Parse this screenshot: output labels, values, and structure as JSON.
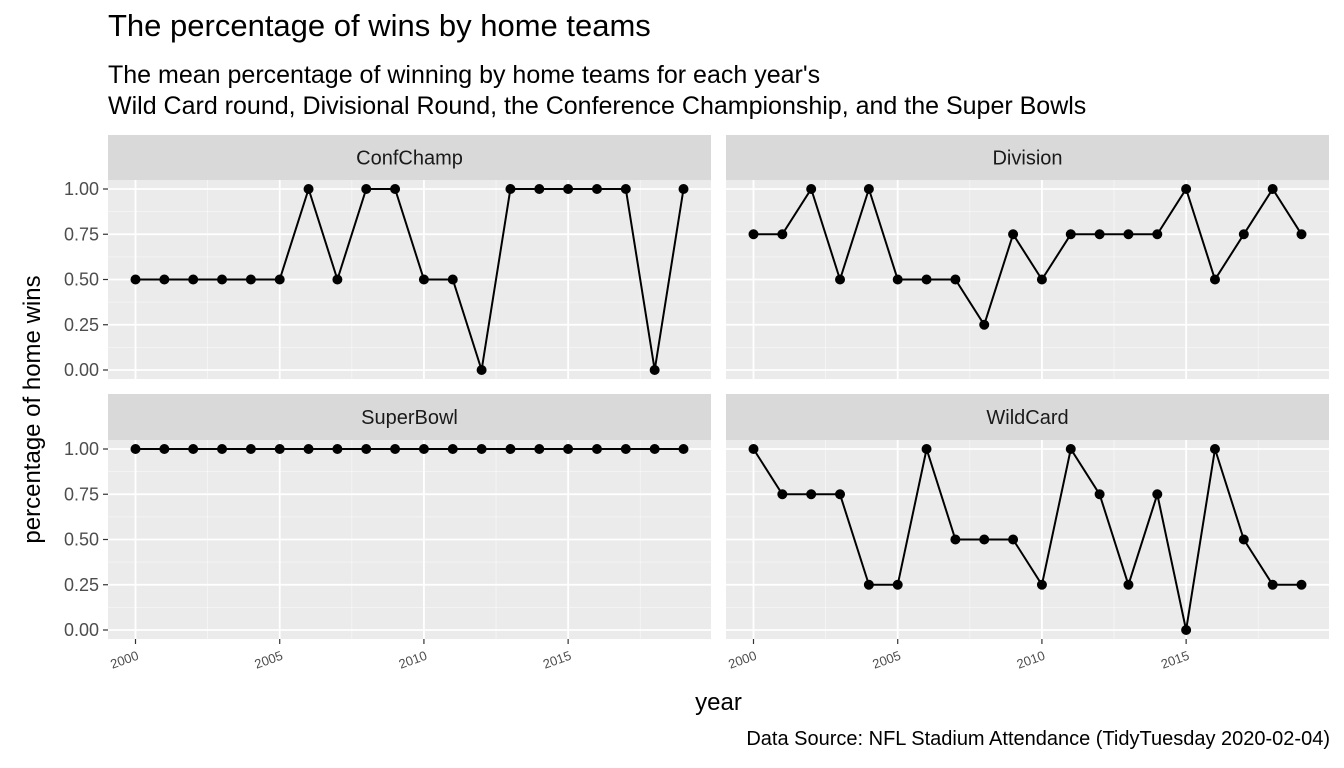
{
  "chart_data": {
    "type": "line",
    "title": "The percentage of wins by home teams",
    "subtitle": [
      "The mean percentage of winning by home teams for each year's",
      "Wild Card round, Divisional Round, the Conference Championship, and the Super Bowls"
    ],
    "caption": "Data Source: NFL Stadium Attendance (TidyTuesday 2020-02-04)",
    "xlabel": "year",
    "ylabel": "percentage of home wins",
    "xlim": [
      2000,
      2019
    ],
    "ylim": [
      0,
      1
    ],
    "x_ticks": [
      "2000",
      "2005",
      "2010",
      "2015"
    ],
    "y_ticks": [
      "0.00",
      "0.25",
      "0.50",
      "0.75",
      "1.00"
    ],
    "grid": true,
    "x": [
      2000,
      2001,
      2002,
      2003,
      2004,
      2005,
      2006,
      2007,
      2008,
      2009,
      2010,
      2011,
      2012,
      2013,
      2014,
      2015,
      2016,
      2017,
      2018,
      2019
    ],
    "facets": [
      {
        "name": "ConfChamp",
        "values": [
          0.5,
          0.5,
          0.5,
          0.5,
          0.5,
          0.5,
          1,
          0.5,
          1,
          1,
          0.5,
          0.5,
          0,
          1,
          1,
          1,
          1,
          1,
          0,
          1
        ]
      },
      {
        "name": "Division",
        "values": [
          0.75,
          0.75,
          1,
          0.5,
          1,
          0.5,
          0.5,
          0.5,
          0.25,
          0.75,
          0.5,
          0.75,
          0.75,
          0.75,
          0.75,
          1,
          0.5,
          0.75,
          1,
          0.75
        ]
      },
      {
        "name": "SuperBowl",
        "values": [
          1,
          1,
          1,
          1,
          1,
          1,
          1,
          1,
          1,
          1,
          1,
          1,
          1,
          1,
          1,
          1,
          1,
          1,
          1,
          1
        ]
      },
      {
        "name": "WildCard",
        "values": [
          1,
          0.75,
          0.75,
          0.75,
          0.25,
          0.25,
          1,
          0.5,
          0.5,
          0.5,
          0.25,
          1,
          0.75,
          0.25,
          0.75,
          0,
          1,
          0.5,
          0.25,
          0.25
        ]
      }
    ],
    "colors": {
      "panel": "#ebebeb",
      "strip": "#d9d9d9",
      "grid_major": "#ffffff",
      "line": "#000000"
    }
  }
}
